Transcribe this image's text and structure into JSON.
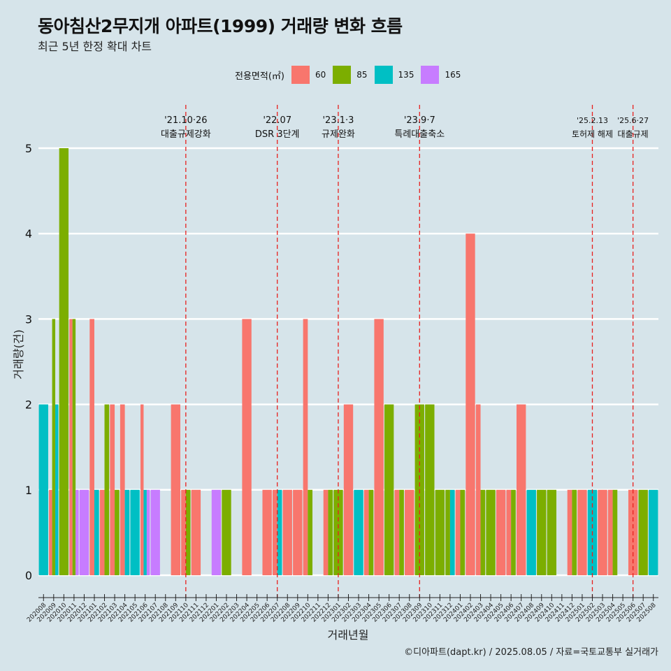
{
  "title": "동아침산2무지개 아파트(1999) 거래량 변화 흐름",
  "subtitle": "최근 5년 한정 확대 차트",
  "caption": "©디아파트(dapt.kr) / 2025.08.05 / 자료=국토교통부 실거래가",
  "legend_title": "전용면적(㎡)",
  "colors": {
    "60": "#f8766d",
    "85": "#7cae00",
    "135": "#00bfc4",
    "165": "#c77cff",
    "grid": "#ffffff",
    "vline": "#e8201e"
  },
  "chart_data": {
    "type": "bar",
    "xlabel": "거래년월",
    "ylabel": "거래량(건)",
    "ylim": [
      0,
      5
    ],
    "yticks": [
      0,
      1,
      2,
      3,
      4,
      5
    ],
    "categories": [
      "202008",
      "202009",
      "202010",
      "202011",
      "202012",
      "202101",
      "202102",
      "202103",
      "202104",
      "202105",
      "202106",
      "202107",
      "202108",
      "202109",
      "202110",
      "202111",
      "202112",
      "202201",
      "202202",
      "202203",
      "202204",
      "202205",
      "202206",
      "202207",
      "202208",
      "202209",
      "202210",
      "202211",
      "202212",
      "202301",
      "202302",
      "202303",
      "202304",
      "202305",
      "202306",
      "202307",
      "202308",
      "202309",
      "202310",
      "202311",
      "202312",
      "202401",
      "202402",
      "202403",
      "202404",
      "202405",
      "202406",
      "202407",
      "202408",
      "202409",
      "202410",
      "202411",
      "202412",
      "202501",
      "202502",
      "202503",
      "202504",
      "202505",
      "202506",
      "202507",
      "202508"
    ],
    "series": [
      {
        "name": "60",
        "values": [
          0,
          1,
          0,
          3,
          0,
          3,
          1,
          2,
          2,
          0,
          2,
          0,
          0,
          2,
          1,
          1,
          0,
          0,
          0,
          0,
          3,
          0,
          1,
          1,
          1,
          1,
          3,
          0,
          1,
          0,
          2,
          0,
          1,
          3,
          0,
          1,
          1,
          0,
          0,
          0,
          0,
          1,
          4,
          2,
          0,
          1,
          1,
          2,
          0,
          0,
          0,
          0,
          1,
          1,
          0,
          1,
          1,
          0,
          1,
          0,
          0
        ]
      },
      {
        "name": "85",
        "values": [
          0,
          3,
          5,
          3,
          0,
          0,
          2,
          1,
          0,
          0,
          0,
          0,
          0,
          0,
          1,
          0,
          0,
          0,
          1,
          0,
          0,
          0,
          0,
          0,
          0,
          0,
          1,
          0,
          1,
          1,
          0,
          0,
          1,
          0,
          2,
          1,
          0,
          2,
          2,
          1,
          1,
          1,
          0,
          1,
          1,
          0,
          1,
          0,
          0,
          1,
          1,
          0,
          1,
          0,
          0,
          0,
          1,
          0,
          0,
          1,
          0
        ]
      },
      {
        "name": "135",
        "values": [
          2,
          2,
          0,
          0,
          0,
          1,
          0,
          0,
          1,
          1,
          1,
          0,
          0,
          0,
          0,
          0,
          0,
          0,
          0,
          0,
          0,
          0,
          0,
          1,
          0,
          0,
          0,
          0,
          0,
          0,
          0,
          1,
          0,
          0,
          0,
          0,
          0,
          0,
          0,
          0,
          1,
          0,
          0,
          0,
          0,
          0,
          0,
          0,
          1,
          0,
          0,
          0,
          0,
          0,
          1,
          0,
          0,
          0,
          0,
          0,
          1
        ]
      },
      {
        "name": "165",
        "values": [
          0,
          0,
          0,
          1,
          1,
          0,
          0,
          0,
          0,
          0,
          1,
          1,
          0,
          0,
          0,
          0,
          0,
          1,
          0,
          0,
          0,
          0,
          0,
          0,
          0,
          0,
          0,
          0,
          0,
          0,
          0,
          0,
          0,
          0,
          0,
          0,
          0,
          0,
          0,
          0,
          0,
          0,
          0,
          0,
          0,
          0,
          0,
          0,
          0,
          0,
          0,
          0,
          0,
          0,
          0,
          0,
          0,
          0,
          0,
          0,
          0
        ]
      }
    ],
    "annotations": [
      {
        "x": "202110",
        "date": "'21.10·26",
        "label": "대출규제강화"
      },
      {
        "x": "202207",
        "date": "'22.07",
        "label": "DSR 3단계"
      },
      {
        "x": "202301",
        "date": "'23.1·3",
        "label": "규제완화"
      },
      {
        "x": "202309",
        "date": "'23.9·7",
        "label": "특례대출축소"
      },
      {
        "x": "202502",
        "date": "'25.2.13",
        "label": "토허제 해제"
      },
      {
        "x": "202506",
        "date": "'25.6·27",
        "label": "대출규제"
      }
    ]
  }
}
